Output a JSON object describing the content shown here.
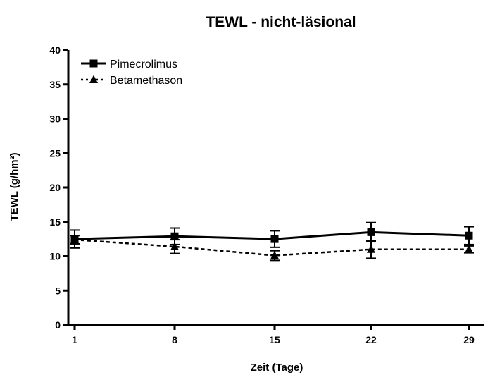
{
  "chart_data": {
    "type": "line",
    "title": "TEWL -  nicht-läsional",
    "xlabel": "Zeit (Tage)",
    "ylabel": "TEWL (g/hm²)",
    "x": [
      1,
      8,
      15,
      22,
      29
    ],
    "xticks": [
      "1",
      "8",
      "15",
      "22",
      "29"
    ],
    "ylim": [
      0,
      40
    ],
    "yticks": [
      "0",
      "5",
      "10",
      "15",
      "20",
      "25",
      "30",
      "35",
      "40"
    ],
    "grid": false,
    "legend_position": "top-left",
    "series": [
      {
        "name": "Pimecrolimus",
        "values": [
          12.5,
          12.9,
          12.5,
          13.5,
          13.0
        ],
        "error": [
          1.3,
          1.2,
          1.2,
          1.4,
          1.3
        ],
        "line_style": "solid",
        "marker": "square",
        "color": "#000000"
      },
      {
        "name": "Betamethason",
        "values": [
          12.4,
          11.4,
          10.1,
          11.0,
          11.0
        ],
        "error": [
          0.6,
          1.0,
          0.7,
          1.3,
          0.5
        ],
        "line_style": "dashed",
        "marker": "triangle",
        "color": "#000000"
      }
    ]
  }
}
